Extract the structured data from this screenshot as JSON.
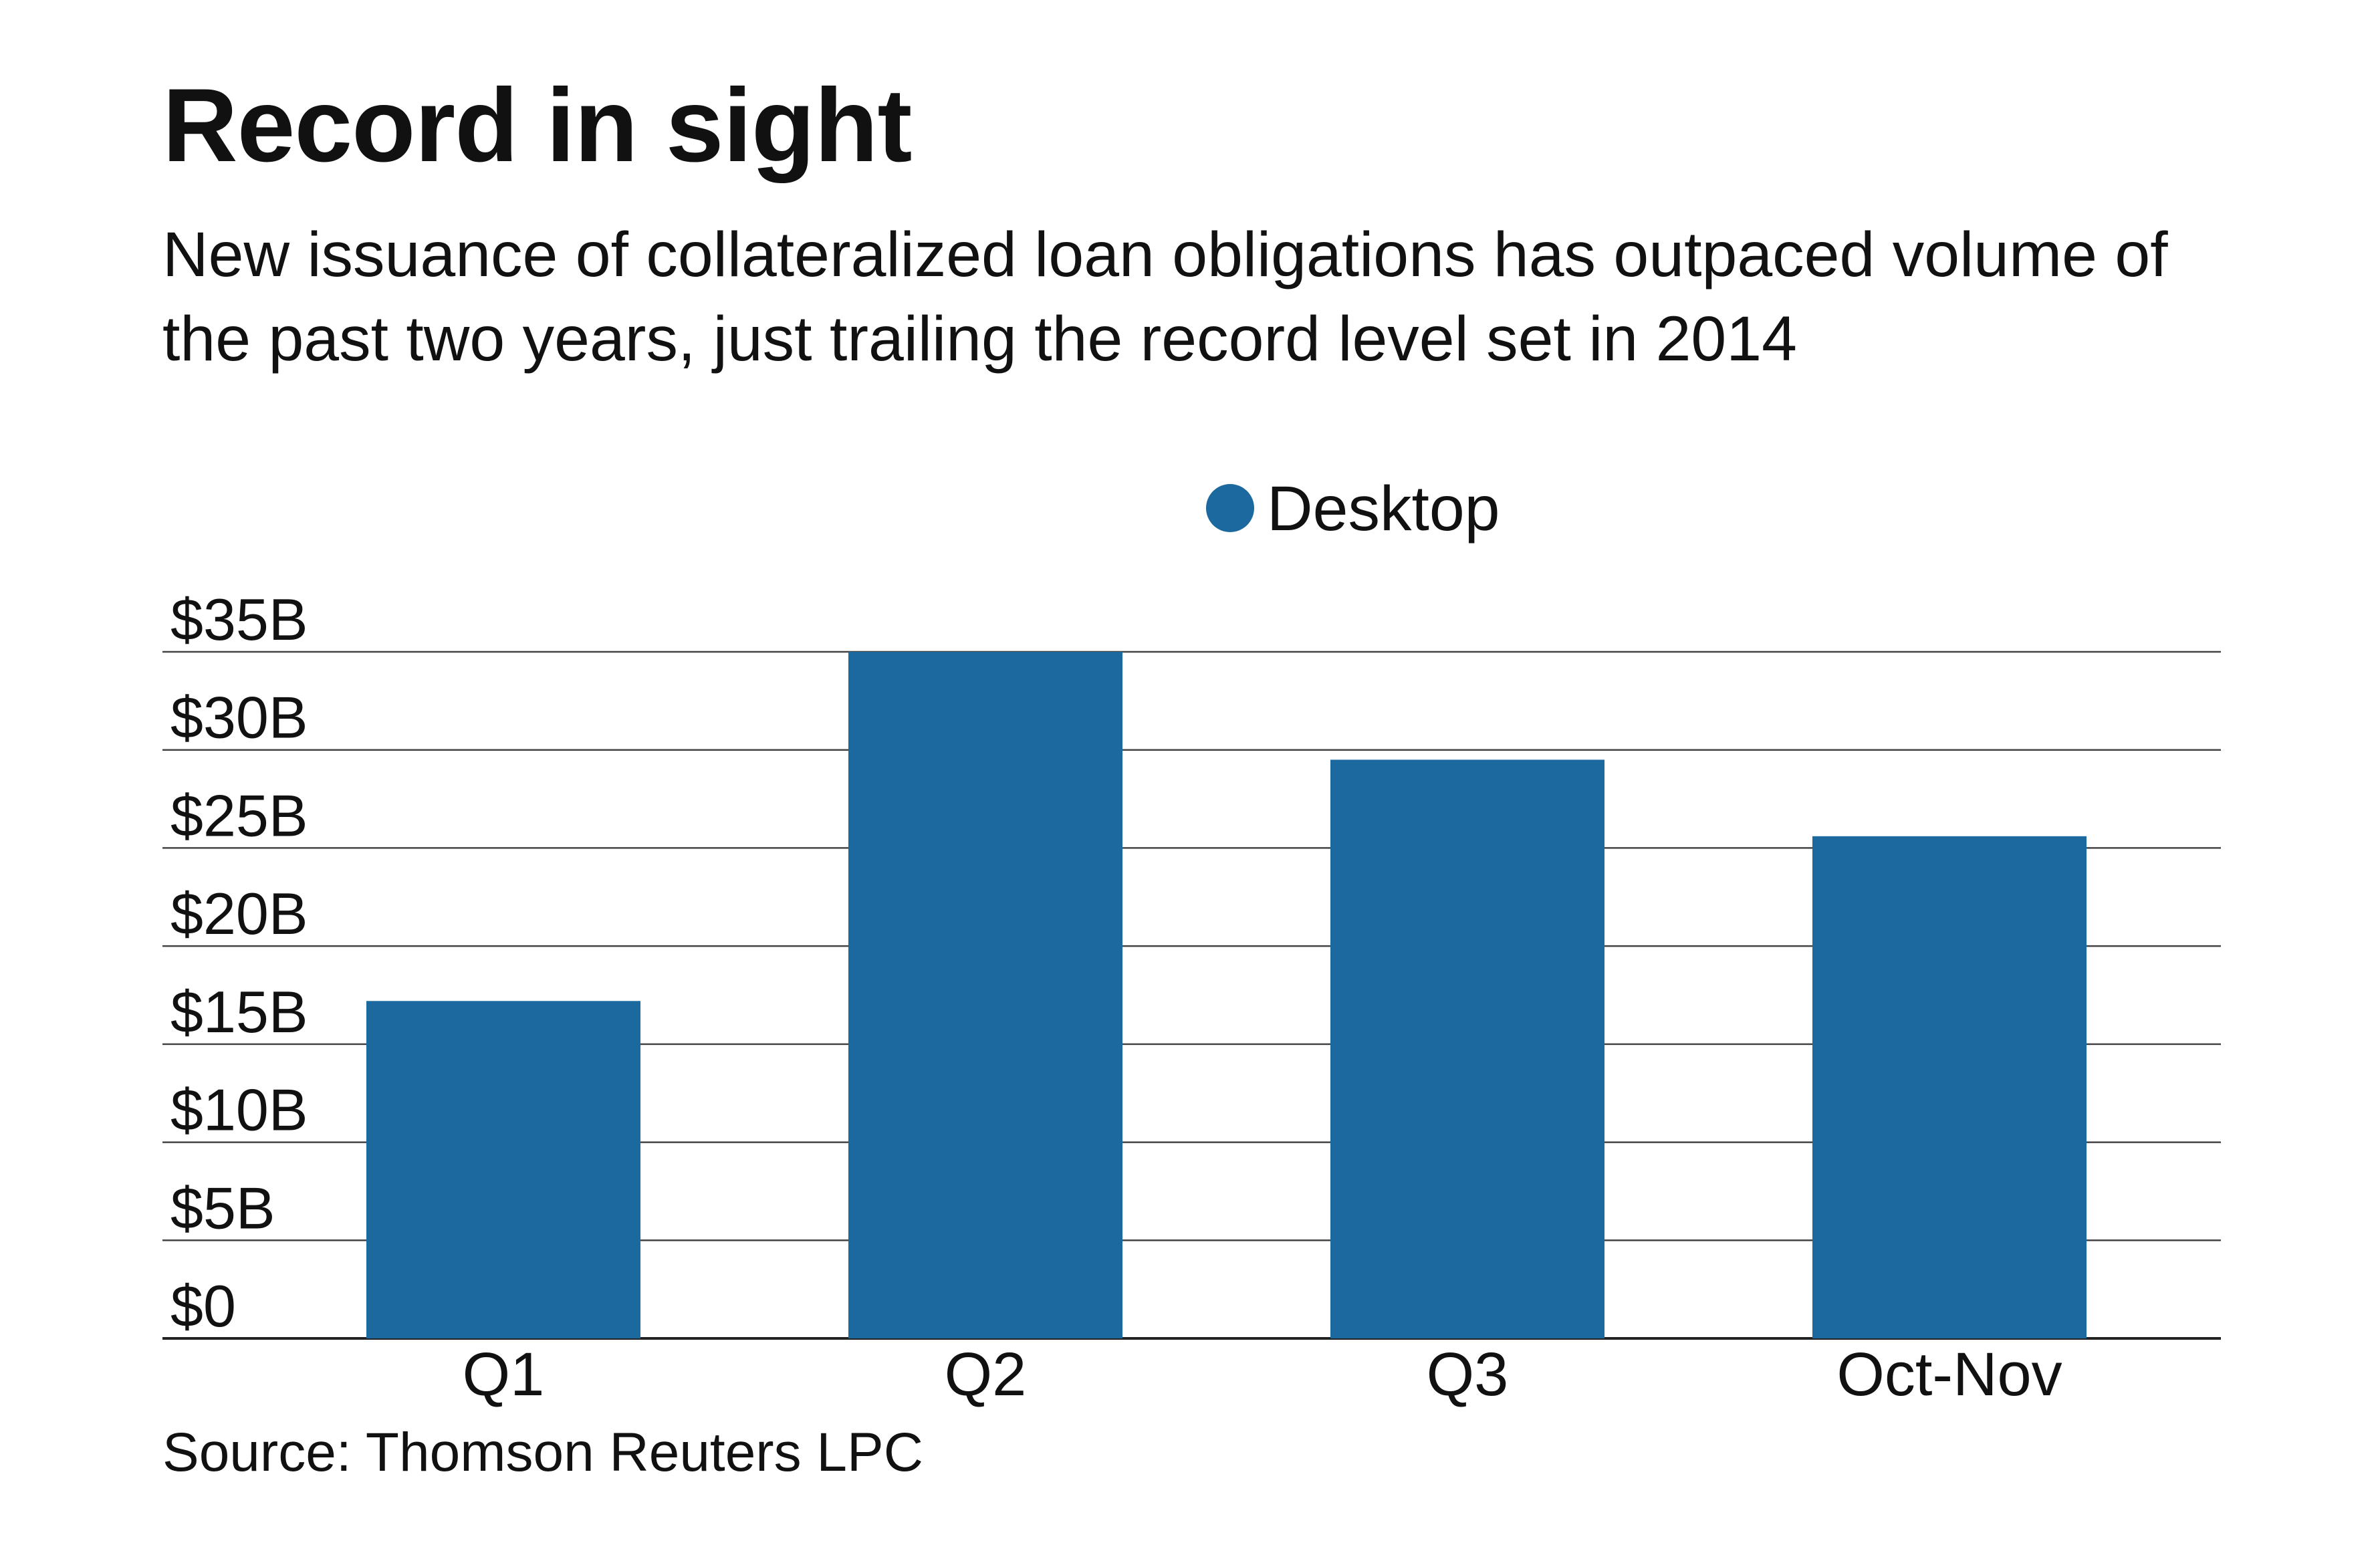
{
  "chart_data": {
    "type": "bar",
    "title": "Record in sight",
    "subtitle": "New issuance of collateralized loan obligations has outpaced volume of the past two years, just trailing the record level set in 2014",
    "categories": [
      "Q1",
      "Q2",
      "Q3",
      "Oct-Nov"
    ],
    "series": [
      {
        "name": "Desktop",
        "values": [
          17.2,
          35.0,
          29.5,
          25.6
        ],
        "color": "#1c699f"
      }
    ],
    "y_ticks": [
      "$0",
      "$5B",
      "$10B",
      "$15B",
      "$20B",
      "$25B",
      "$30B",
      "$35B"
    ],
    "y_tick_values": [
      0,
      5,
      10,
      15,
      20,
      25,
      30,
      35
    ],
    "ylim": [
      0,
      35
    ],
    "xlabel": "",
    "ylabel": "",
    "grid": true,
    "legend_position": "top-center",
    "source": "Source: Thomson Reuters LPC"
  }
}
